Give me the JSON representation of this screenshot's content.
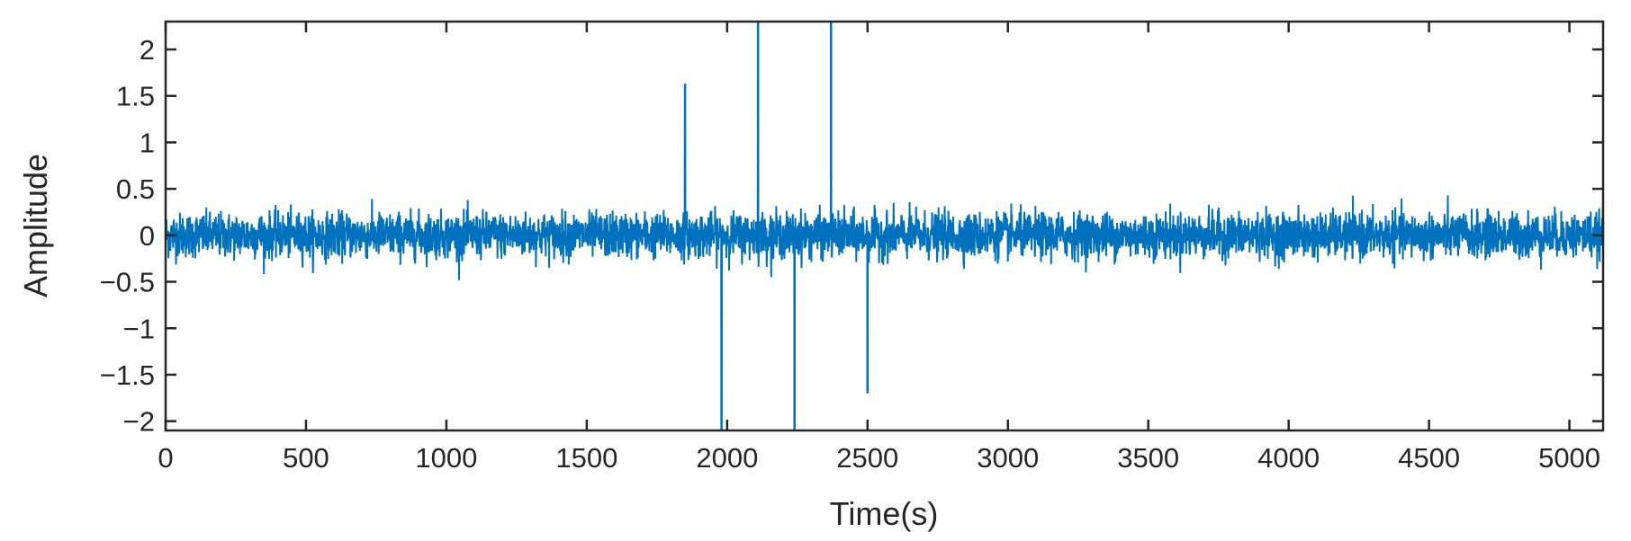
{
  "chart_data": {
    "type": "line",
    "title": "",
    "xlabel": "Time(s)",
    "ylabel": "Amplitude",
    "xlim": [
      0,
      5120
    ],
    "ylim": [
      -2.1,
      2.3
    ],
    "xticks": [
      0,
      500,
      1000,
      1500,
      2000,
      2500,
      3000,
      3500,
      4000,
      4500,
      5000
    ],
    "yticks": [
      -2,
      -1.5,
      -1,
      -0.5,
      0,
      0.5,
      1,
      1.5,
      2
    ],
    "ytick_labels": [
      "−2",
      "−1.5",
      "−1",
      "−0.5",
      "0",
      "0.5",
      "1",
      "1.5",
      "2"
    ],
    "grid": false,
    "box": true,
    "series": [
      {
        "color": "#0072BD",
        "description": "noise signal, approx. uniform amplitude within about ±0.3 with occasional excursions to about ±0.6",
        "noise_std": 0.12,
        "n_points": 5120,
        "spikes": [
          {
            "x": 1850,
            "y": 1.63
          },
          {
            "x": 1980,
            "y": -2.1
          },
          {
            "x": 2110,
            "y": 2.3
          },
          {
            "x": 2240,
            "y": -2.1
          },
          {
            "x": 2370,
            "y": 2.3
          },
          {
            "x": 2500,
            "y": -1.7
          }
        ]
      }
    ],
    "colors": {
      "line": "#0072BD",
      "axis": "#262626"
    }
  }
}
